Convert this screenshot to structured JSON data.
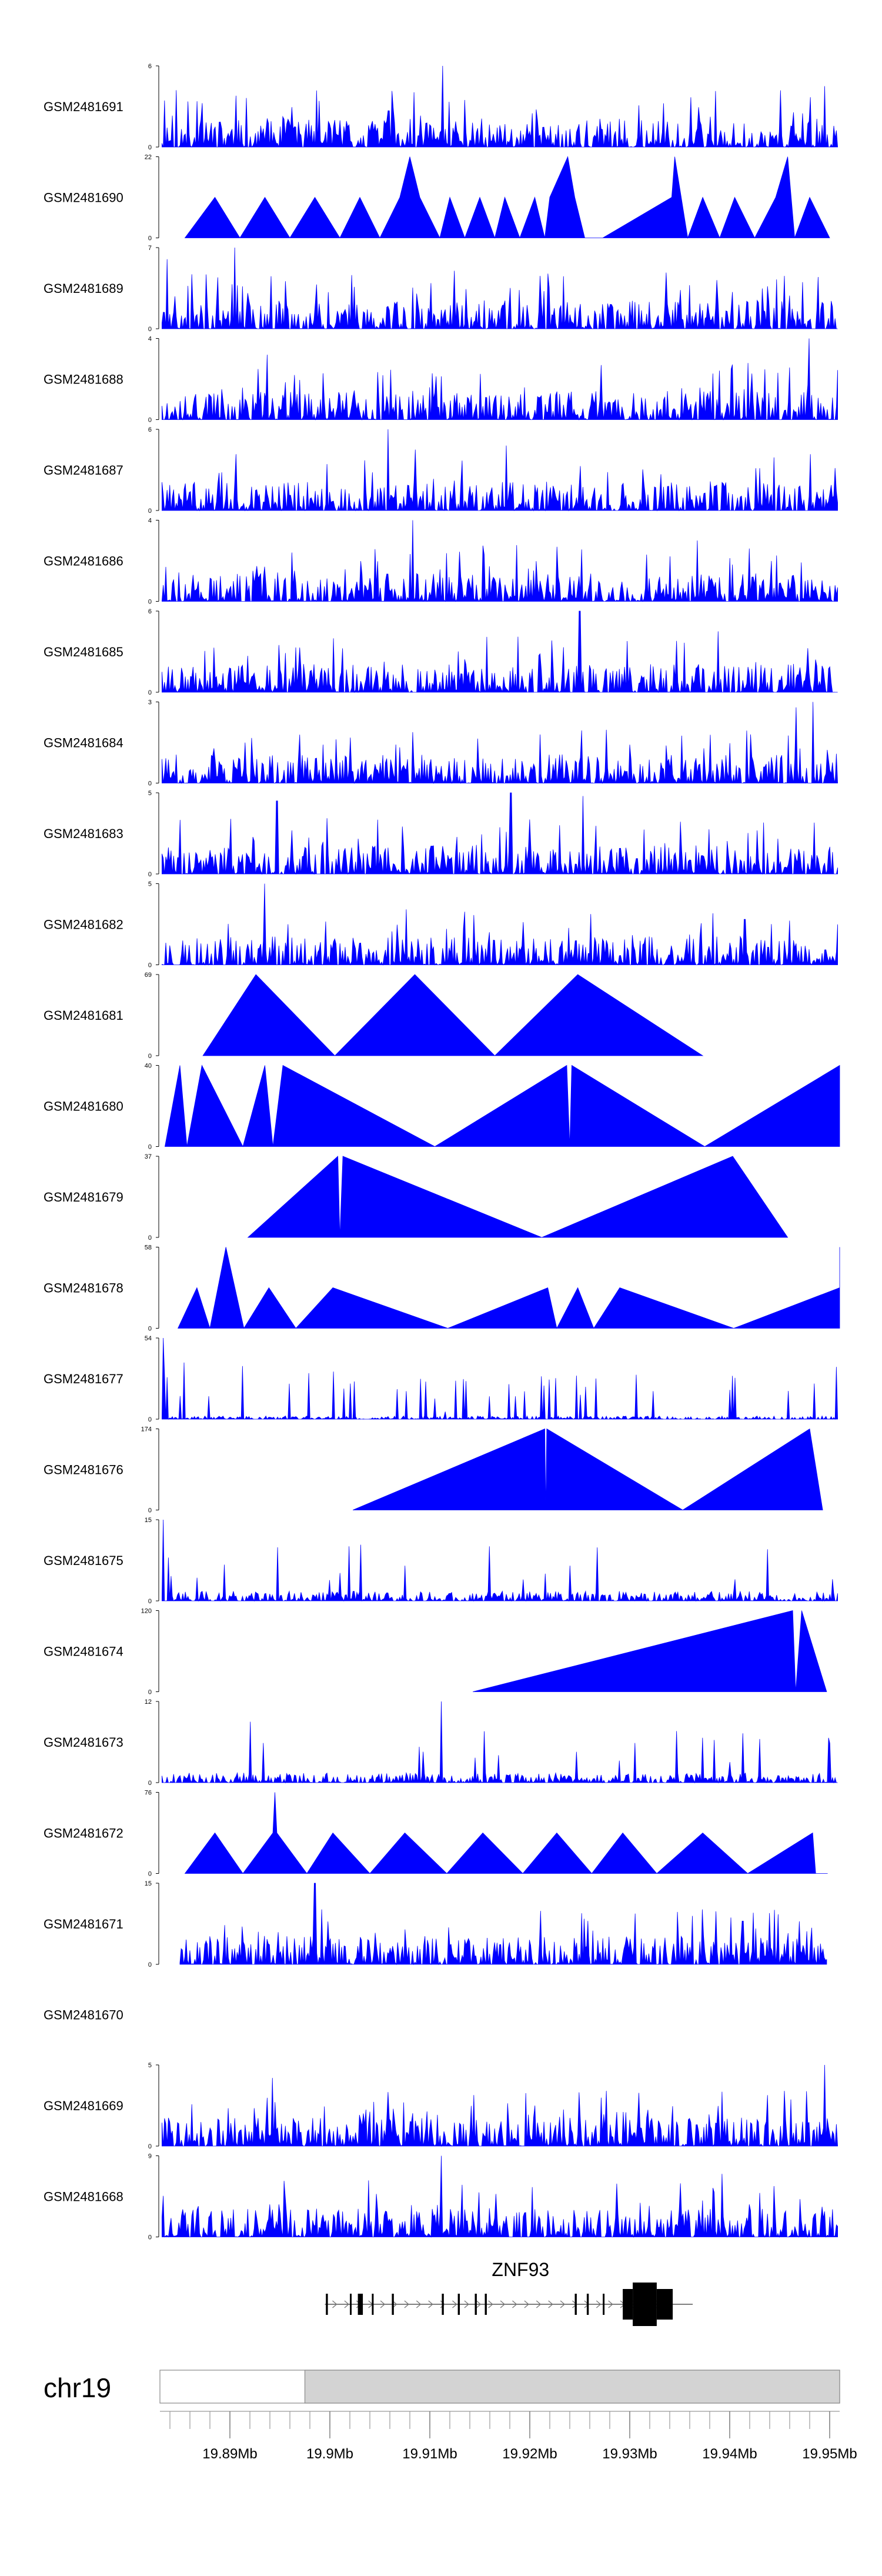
{
  "chart_data": {
    "type": "area",
    "title": "",
    "fill_color": "#0000ff",
    "xlim": [
      19.883,
      19.951
    ],
    "x_unit": "Mb",
    "tracks": [
      {
        "name": "GSM2481691",
        "ymin": 0,
        "ymax": 6,
        "style": "dense",
        "seed": 11,
        "peaks": [
          [
            19.8846,
            4.2
          ],
          [
            19.9113,
            6
          ],
          [
            19.9495,
            4.5
          ]
        ]
      },
      {
        "name": "GSM2481690",
        "ymin": 0,
        "ymax": 22,
        "style": "tri",
        "points": [
          [
            19.8855,
            0
          ],
          [
            19.8885,
            11
          ],
          [
            19.891,
            0
          ],
          [
            19.8935,
            11
          ],
          [
            19.896,
            0
          ],
          [
            19.8985,
            11
          ],
          [
            19.901,
            0
          ],
          [
            19.903,
            11
          ],
          [
            19.905,
            0
          ],
          [
            19.907,
            11
          ],
          [
            19.908,
            22
          ],
          [
            19.909,
            11
          ],
          [
            19.911,
            0
          ],
          [
            19.912,
            11
          ],
          [
            19.9135,
            0
          ],
          [
            19.915,
            11
          ],
          [
            19.9165,
            0
          ],
          [
            19.9175,
            11
          ],
          [
            19.919,
            0
          ],
          [
            19.9205,
            11
          ],
          [
            19.9215,
            0
          ],
          [
            19.922,
            11
          ],
          [
            19.9238,
            22
          ],
          [
            19.9245,
            11
          ],
          [
            19.9255,
            0
          ],
          [
            19.9273,
            0
          ],
          [
            19.9342,
            11
          ],
          [
            19.9345,
            22
          ],
          [
            19.9358,
            0
          ],
          [
            19.9373,
            11
          ],
          [
            19.939,
            0
          ],
          [
            19.9405,
            11
          ],
          [
            19.9425,
            0
          ],
          [
            19.9446,
            11
          ],
          [
            19.9458,
            22
          ],
          [
            19.9465,
            0
          ],
          [
            19.948,
            11
          ],
          [
            19.95,
            0
          ]
        ]
      },
      {
        "name": "GSM2481689",
        "ymin": 0,
        "ymax": 7,
        "style": "dense",
        "seed": 23,
        "peaks": [
          [
            19.8837,
            6
          ],
          [
            19.8905,
            7
          ],
          [
            19.9125,
            5
          ]
        ]
      },
      {
        "name": "GSM2481688",
        "ymin": 0,
        "ymax": 4,
        "style": "dense",
        "seed": 37,
        "peaks": [
          [
            19.9479,
            4
          ],
          [
            19.8937,
            3.2
          ]
        ]
      },
      {
        "name": "GSM2481687",
        "ymin": 0,
        "ymax": 6,
        "style": "dense",
        "seed": 41,
        "peaks": [
          [
            19.9058,
            6
          ],
          [
            19.9085,
            4.5
          ],
          [
            19.9176,
            4.8
          ]
        ]
      },
      {
        "name": "GSM2481686",
        "ymin": 0,
        "ymax": 4,
        "style": "dense",
        "seed": 53,
        "peaks": [
          [
            19.9083,
            4
          ],
          [
            19.9368,
            3
          ]
        ]
      },
      {
        "name": "GSM2481685",
        "ymin": 0,
        "ymax": 6,
        "style": "dense",
        "seed": 61,
        "peaks": [
          [
            19.925,
            6
          ],
          [
            19.9388,
            4.5
          ]
        ]
      },
      {
        "name": "GSM2481684",
        "ymin": 0,
        "ymax": 3,
        "style": "dense",
        "seed": 73,
        "peaks": [
          [
            19.9483,
            3
          ],
          [
            19.9466,
            2.8
          ]
        ]
      },
      {
        "name": "GSM2481683",
        "ymin": 0,
        "ymax": 5,
        "style": "dense",
        "seed": 83,
        "peaks": [
          [
            19.9181,
            5
          ],
          [
            19.8947,
            4.5
          ],
          [
            19.9253,
            4.8
          ]
        ]
      },
      {
        "name": "GSM2481682",
        "ymin": 0,
        "ymax": 5,
        "style": "dense",
        "seed": 97,
        "peaks": [
          [
            19.8935,
            5
          ],
          [
            19.8958,
            2.5
          ],
          [
            19.9415,
            2.8
          ]
        ]
      },
      {
        "name": "GSM2481681",
        "ymin": 0,
        "ymax": 69,
        "style": "tri",
        "points": [
          [
            19.8873,
            0
          ],
          [
            19.8926,
            69
          ],
          [
            19.9005,
            0
          ],
          [
            19.9085,
            69
          ],
          [
            19.9165,
            0
          ],
          [
            19.9248,
            69
          ],
          [
            19.9373,
            0
          ]
        ]
      },
      {
        "name": "GSM2481680",
        "ymin": 0,
        "ymax": 40,
        "style": "tri",
        "points": [
          [
            19.8835,
            0
          ],
          [
            19.885,
            40
          ],
          [
            19.8857,
            0
          ],
          [
            19.8872,
            40
          ],
          [
            19.8913,
            0
          ],
          [
            19.8935,
            40
          ],
          [
            19.8943,
            0
          ],
          [
            19.8953,
            40
          ],
          [
            19.9105,
            0
          ],
          [
            19.9237,
            40
          ],
          [
            19.924,
            0
          ],
          [
            19.9242,
            40
          ],
          [
            19.9375,
            0
          ],
          [
            19.951,
            40
          ]
        ]
      },
      {
        "name": "GSM2481679",
        "ymin": 0,
        "ymax": 37,
        "style": "tri",
        "points": [
          [
            19.8918,
            0
          ],
          [
            19.9008,
            37
          ],
          [
            19.901,
            0
          ],
          [
            19.9013,
            37
          ],
          [
            19.9212,
            0
          ],
          [
            19.9403,
            37
          ],
          [
            19.9458,
            0
          ]
        ]
      },
      {
        "name": "GSM2481678",
        "ymin": 0,
        "ymax": 58,
        "style": "tri",
        "points": [
          [
            19.8848,
            0
          ],
          [
            19.8867,
            29
          ],
          [
            19.888,
            0
          ],
          [
            19.8896,
            58
          ],
          [
            19.8914,
            0
          ],
          [
            19.8939,
            29
          ],
          [
            19.8966,
            0
          ],
          [
            19.9003,
            29
          ],
          [
            19.9118,
            0
          ],
          [
            19.9218,
            29
          ],
          [
            19.9227,
            0
          ],
          [
            19.9248,
            29
          ],
          [
            19.9264,
            0
          ],
          [
            19.929,
            29
          ],
          [
            19.9404,
            0
          ],
          [
            19.951,
            29
          ],
          [
            19.951,
            58
          ]
        ]
      },
      {
        "name": "GSM2481677",
        "ymin": 0,
        "ymax": 54,
        "style": "dense",
        "seed": 101,
        "baseline": 0.04,
        "peaks": [
          [
            19.8833,
            54
          ],
          [
            19.8835,
            30
          ],
          [
            19.9115,
            5
          ]
        ]
      },
      {
        "name": "GSM2481676",
        "ymin": 0,
        "ymax": 174,
        "style": "tri",
        "points": [
          [
            19.9023,
            0
          ],
          [
            19.9215,
            174
          ],
          [
            19.9216,
            0
          ],
          [
            19.9217,
            174
          ],
          [
            19.9353,
            0
          ],
          [
            19.948,
            174
          ],
          [
            19.9493,
            0
          ]
        ]
      },
      {
        "name": "GSM2481675",
        "ymin": 0,
        "ymax": 15,
        "style": "dense",
        "seed": 113,
        "sparse": true,
        "peaks": [
          [
            19.8833,
            15
          ],
          [
            19.8838,
            8
          ]
        ]
      },
      {
        "name": "GSM2481674",
        "ymin": 0,
        "ymax": 120,
        "style": "tri",
        "points": [
          [
            19.9143,
            0
          ],
          [
            19.9463,
            120
          ],
          [
            19.9466,
            0
          ],
          [
            19.9472,
            120
          ],
          [
            19.9497,
            0
          ]
        ]
      },
      {
        "name": "GSM2481673",
        "ymin": 0,
        "ymax": 12,
        "style": "dense",
        "seed": 127,
        "sparse": true,
        "peaks": [
          [
            19.9112,
            12
          ],
          [
            19.892,
            9
          ]
        ]
      },
      {
        "name": "GSM2481672",
        "ymin": 0,
        "ymax": 76,
        "style": "tri",
        "points": [
          [
            19.8855,
            0
          ],
          [
            19.8885,
            38
          ],
          [
            19.8913,
            0
          ],
          [
            19.8943,
            38
          ],
          [
            19.8945,
            76
          ],
          [
            19.8947,
            38
          ],
          [
            19.8977,
            0
          ],
          [
            19.9003,
            38
          ],
          [
            19.904,
            0
          ],
          [
            19.9075,
            38
          ],
          [
            19.9117,
            0
          ],
          [
            19.9153,
            38
          ],
          [
            19.9193,
            0
          ],
          [
            19.9227,
            38
          ],
          [
            19.9262,
            0
          ],
          [
            19.9293,
            38
          ],
          [
            19.9327,
            0
          ],
          [
            19.9373,
            38
          ],
          [
            19.9418,
            0
          ],
          [
            19.9483,
            38
          ],
          [
            19.9486,
            0
          ],
          [
            19.9498,
            0
          ]
        ]
      },
      {
        "name": "GSM2481671",
        "ymin": 0,
        "ymax": 15,
        "style": "dense",
        "seed": 131,
        "start": 19.885,
        "end": 19.9497,
        "peaks": [
          [
            19.8985,
            15
          ],
          [
            19.9413,
            8
          ]
        ]
      },
      {
        "name": "GSM2481670",
        "ymin": null,
        "ymax": null,
        "style": "empty"
      },
      {
        "name": "GSM2481669",
        "ymin": 0,
        "ymax": 5,
        "style": "dense",
        "seed": 139,
        "peaks": [
          [
            19.9495,
            5
          ],
          [
            19.8942,
            4.2
          ]
        ]
      },
      {
        "name": "GSM2481668",
        "ymin": 0,
        "ymax": 9,
        "style": "dense",
        "seed": 149,
        "peaks": [
          [
            19.9111,
            9
          ],
          [
            19.9392,
            7
          ]
        ]
      }
    ],
    "gene": {
      "name": "ZNF93",
      "strand": "+",
      "start": 19.8995,
      "end": 19.9363,
      "exons": [
        [
          19.8996,
          19.8998
        ],
        [
          19.902,
          19.9021
        ],
        [
          19.9028,
          19.9033
        ],
        [
          19.9042,
          19.9043
        ],
        [
          19.9062,
          19.9064
        ],
        [
          19.9112,
          19.9114
        ],
        [
          19.9128,
          19.913
        ],
        [
          19.9145,
          19.9147
        ],
        [
          19.9155,
          19.9157
        ],
        [
          19.9245,
          19.9247
        ],
        [
          19.9257,
          19.9259
        ],
        [
          19.9273,
          19.9274
        ],
        [
          19.9293,
          19.9303
        ],
        [
          19.9303,
          19.9327
        ],
        [
          19.9327,
          19.9343
        ]
      ]
    },
    "ideogram": {
      "chrom": "chr19",
      "highlight": [
        19.8975,
        19.951
      ],
      "highlight_color": "#d3d3d3"
    },
    "x_ticks": [
      "19.89Mb",
      "19.9Mb",
      "19.91Mb",
      "19.92Mb",
      "19.93Mb",
      "19.94Mb",
      "19.95Mb"
    ],
    "x_tick_values": [
      19.89,
      19.9,
      19.91,
      19.92,
      19.93,
      19.94,
      19.95
    ],
    "minor_tick_step": 0.002
  }
}
